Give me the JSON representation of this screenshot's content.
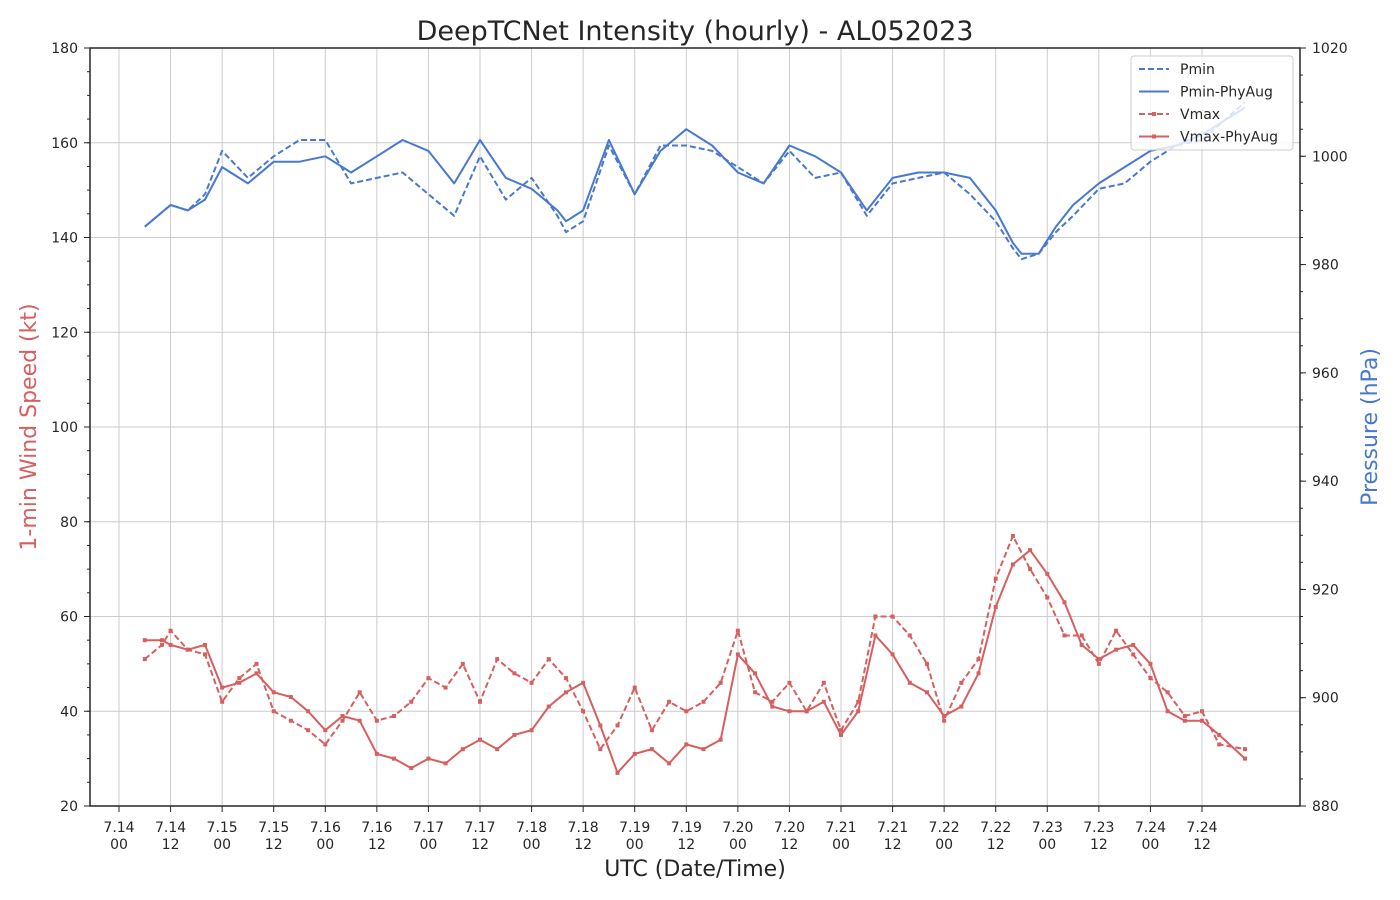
{
  "chart_data": {
    "type": "line",
    "title": "DeepTCNet Intensity (hourly) - AL052023",
    "xlabel": "UTC (Date/Time)",
    "ylabel_left": "1-min Wind Speed (kt)",
    "ylabel_right": "Pressure (hPa)",
    "ylim_left": [
      20,
      180
    ],
    "ylim_right": [
      880,
      1020
    ],
    "yticks_left": [
      "20",
      "40",
      "60",
      "80",
      "100",
      "120",
      "140",
      "160",
      "180"
    ],
    "yticks_right": [
      "880",
      "900",
      "920",
      "940",
      "960",
      "980",
      "1000",
      "1020"
    ],
    "x_unit": "hours since 7.14 00 UTC",
    "xlim": [
      0,
      270
    ],
    "xticks": [
      {
        "hours": 0,
        "date": "7.14",
        "hour": "00"
      },
      {
        "hours": 12,
        "date": "7.14",
        "hour": "12"
      },
      {
        "hours": 24,
        "date": "7.15",
        "hour": "00"
      },
      {
        "hours": 36,
        "date": "7.15",
        "hour": "12"
      },
      {
        "hours": 48,
        "date": "7.16",
        "hour": "00"
      },
      {
        "hours": 60,
        "date": "7.16",
        "hour": "12"
      },
      {
        "hours": 72,
        "date": "7.17",
        "hour": "00"
      },
      {
        "hours": 84,
        "date": "7.17",
        "hour": "12"
      },
      {
        "hours": 96,
        "date": "7.18",
        "hour": "00"
      },
      {
        "hours": 108,
        "date": "7.18",
        "hour": "12"
      },
      {
        "hours": 120,
        "date": "7.19",
        "hour": "00"
      },
      {
        "hours": 132,
        "date": "7.19",
        "hour": "12"
      },
      {
        "hours": 144,
        "date": "7.20",
        "hour": "00"
      },
      {
        "hours": 156,
        "date": "7.20",
        "hour": "12"
      },
      {
        "hours": 168,
        "date": "7.21",
        "hour": "00"
      },
      {
        "hours": 180,
        "date": "7.21",
        "hour": "12"
      },
      {
        "hours": 192,
        "date": "7.22",
        "hour": "00"
      },
      {
        "hours": 204,
        "date": "7.22",
        "hour": "12"
      },
      {
        "hours": 216,
        "date": "7.23",
        "hour": "00"
      },
      {
        "hours": 228,
        "date": "7.23",
        "hour": "12"
      },
      {
        "hours": 240,
        "date": "7.24",
        "hour": "00"
      },
      {
        "hours": 252,
        "date": "7.24",
        "hour": "12"
      }
    ],
    "grid": true,
    "legend_position": "top-right",
    "colors": {
      "pressure": "#4878cf",
      "wind": "#d65f5f",
      "text": "#262626",
      "grid": "#cccccc"
    },
    "series": [
      {
        "name": "Pmin",
        "axis": "right",
        "style": "dashed",
        "x": [
          6,
          12,
          16,
          20,
          24,
          30,
          36,
          42,
          48,
          54,
          60,
          66,
          72,
          78,
          84,
          90,
          96,
          102,
          104,
          108,
          114,
          120,
          126,
          132,
          138,
          144,
          150,
          156,
          162,
          168,
          174,
          180,
          186,
          192,
          198,
          204,
          208,
          210,
          214,
          218,
          222,
          228,
          234,
          240,
          246,
          252,
          262
        ],
        "y": [
          987,
          991,
          990,
          993,
          1001,
          996,
          1000,
          1003,
          1003,
          995,
          996,
          997,
          993,
          989,
          1000,
          992,
          996,
          989,
          986,
          988,
          1002,
          993,
          1002,
          1002,
          1001,
          998,
          995,
          1001,
          996,
          997,
          989,
          995,
          996,
          997,
          993,
          988,
          983,
          981,
          982,
          986,
          989,
          994,
          995,
          999,
          1002,
          1003,
          1010
        ]
      },
      {
        "name": "Pmin-PhyAug",
        "axis": "right",
        "style": "solid",
        "x": [
          6,
          12,
          16,
          20,
          24,
          30,
          36,
          42,
          48,
          54,
          60,
          66,
          72,
          78,
          84,
          90,
          96,
          102,
          104,
          108,
          114,
          120,
          126,
          132,
          138,
          144,
          150,
          156,
          162,
          168,
          174,
          180,
          186,
          192,
          198,
          204,
          208,
          210,
          214,
          218,
          222,
          228,
          234,
          240,
          246,
          252,
          262
        ],
        "y": [
          987,
          991,
          990,
          992,
          998,
          995,
          999,
          999,
          1000,
          997,
          1000,
          1003,
          1001,
          995,
          1003,
          996,
          994,
          990,
          988,
          990,
          1003,
          993,
          1001,
          1005,
          1002,
          997,
          995,
          1002,
          1000,
          997,
          990,
          996,
          997,
          997,
          996,
          990,
          984,
          982,
          982,
          987,
          991,
          995,
          998,
          1001,
          1002,
          1004,
          1009
        ]
      },
      {
        "name": "Vmax",
        "axis": "left",
        "style": "dashed",
        "x": [
          6,
          10,
          12,
          16,
          20,
          24,
          28,
          32,
          36,
          40,
          44,
          48,
          52,
          56,
          60,
          64,
          68,
          72,
          76,
          80,
          84,
          88,
          92,
          96,
          100,
          104,
          108,
          112,
          116,
          120,
          124,
          128,
          132,
          136,
          140,
          144,
          148,
          152,
          156,
          160,
          164,
          168,
          172,
          176,
          180,
          184,
          188,
          192,
          196,
          200,
          204,
          208,
          212,
          216,
          220,
          224,
          228,
          232,
          236,
          240,
          244,
          248,
          252,
          256,
          262
        ],
        "y": [
          51,
          54,
          57,
          53,
          52,
          42,
          47,
          50,
          40,
          38,
          36,
          33,
          38,
          44,
          38,
          39,
          42,
          47,
          45,
          50,
          42,
          51,
          48,
          46,
          51,
          47,
          40,
          32,
          37,
          45,
          36,
          42,
          40,
          42,
          46,
          57,
          44,
          42,
          46,
          40,
          46,
          36,
          42,
          60,
          60,
          56,
          50,
          38,
          46,
          51,
          68,
          77,
          70,
          64,
          56,
          56,
          50,
          57,
          52,
          47,
          44,
          39,
          40,
          33,
          32
        ]
      },
      {
        "name": "Vmax-PhyAug",
        "axis": "left",
        "style": "solid",
        "x": [
          6,
          10,
          12,
          16,
          20,
          24,
          28,
          32,
          36,
          40,
          44,
          48,
          52,
          56,
          60,
          64,
          68,
          72,
          76,
          80,
          84,
          88,
          92,
          96,
          100,
          104,
          108,
          112,
          116,
          120,
          124,
          128,
          132,
          136,
          140,
          144,
          148,
          152,
          156,
          160,
          164,
          168,
          172,
          176,
          180,
          184,
          188,
          192,
          196,
          200,
          204,
          208,
          212,
          216,
          220,
          224,
          228,
          232,
          236,
          240,
          244,
          248,
          252,
          256,
          262
        ],
        "y": [
          55,
          55,
          54,
          53,
          54,
          45,
          46,
          48,
          44,
          43,
          40,
          36,
          39,
          38,
          31,
          30,
          28,
          30,
          29,
          32,
          34,
          32,
          35,
          36,
          41,
          44,
          46,
          37,
          27,
          31,
          32,
          29,
          33,
          32,
          34,
          52,
          48,
          41,
          40,
          40,
          42,
          35,
          40,
          56,
          52,
          46,
          44,
          39,
          41,
          48,
          62,
          71,
          74,
          69,
          63,
          54,
          51,
          53,
          54,
          50,
          40,
          38,
          38,
          35,
          30
        ]
      }
    ]
  }
}
